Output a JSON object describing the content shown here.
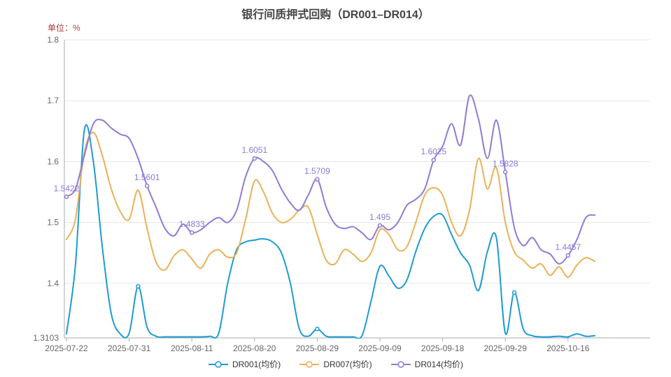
{
  "chart_data": {
    "type": "line",
    "title": "银行间质押式回购（DR001–DR014）",
    "unit_label": "单位：%",
    "ylim": [
      1.3103,
      1.8
    ],
    "y_tick_labels": [
      "1.3103",
      "1.4",
      "1.5",
      "1.6",
      "1.7",
      "1.8"
    ],
    "x_tick_indices": [
      0,
      7,
      14,
      21,
      28,
      35,
      42,
      49,
      56
    ],
    "x_tick_labels": [
      "2025-07-22",
      "2025-07-31",
      "2025-08-11",
      "2025-08-20",
      "2025-08-29",
      "2025-09-09",
      "2025-09-18",
      "2025-09-29",
      "2025-10-16"
    ],
    "grid": true,
    "smooth": true,
    "legend_position": "bottom",
    "x": [
      "2025-07-22",
      "2025-07-23",
      "2025-07-24",
      "2025-07-25",
      "2025-07-28",
      "2025-07-29",
      "2025-07-30",
      "2025-07-31",
      "2025-08-01",
      "2025-08-04",
      "2025-08-05",
      "2025-08-06",
      "2025-08-07",
      "2025-08-08",
      "2025-08-11",
      "2025-08-12",
      "2025-08-13",
      "2025-08-14",
      "2025-08-15",
      "2025-08-18",
      "2025-08-19",
      "2025-08-20",
      "2025-08-21",
      "2025-08-22",
      "2025-08-25",
      "2025-08-26",
      "2025-08-27",
      "2025-08-28",
      "2025-08-29",
      "2025-09-01",
      "2025-09-02",
      "2025-09-03",
      "2025-09-04",
      "2025-09-05",
      "2025-09-08",
      "2025-09-09",
      "2025-09-10",
      "2025-09-11",
      "2025-09-12",
      "2025-09-15",
      "2025-09-16",
      "2025-09-17",
      "2025-09-18",
      "2025-09-19",
      "2025-09-22",
      "2025-09-23",
      "2025-09-24",
      "2025-09-25",
      "2025-09-26",
      "2025-09-29",
      "2025-09-30",
      "2025-10-09",
      "2025-10-10",
      "2025-10-13",
      "2025-10-14",
      "2025-10-15",
      "2025-10-16",
      "2025-10-17",
      "2025-10-20",
      "2025-10-21"
    ],
    "series": [
      {
        "key": "dr001",
        "name": "DR001(均价)",
        "color": "#1d9bd4",
        "marker_indices": [
          8,
          28,
          50
        ],
        "values": [
          1.317,
          1.43,
          1.652,
          1.6,
          1.46,
          1.35,
          1.317,
          1.318,
          1.395,
          1.328,
          1.313,
          1.312,
          1.312,
          1.312,
          1.312,
          1.312,
          1.313,
          1.318,
          1.4,
          1.455,
          1.468,
          1.471,
          1.473,
          1.468,
          1.45,
          1.4,
          1.325,
          1.313,
          1.325,
          1.313,
          1.312,
          1.312,
          1.312,
          1.314,
          1.37,
          1.428,
          1.412,
          1.392,
          1.405,
          1.452,
          1.49,
          1.51,
          1.512,
          1.48,
          1.45,
          1.43,
          1.388,
          1.452,
          1.475,
          1.318,
          1.385,
          1.325,
          1.314,
          1.312,
          1.312,
          1.313,
          1.312,
          1.317,
          1.313,
          1.314
        ]
      },
      {
        "key": "dr007",
        "name": "DR007(均价)",
        "color": "#e9b258",
        "marker_indices": [],
        "values": [
          1.472,
          1.505,
          1.615,
          1.648,
          1.61,
          1.555,
          1.518,
          1.505,
          1.553,
          1.49,
          1.435,
          1.422,
          1.445,
          1.455,
          1.44,
          1.425,
          1.448,
          1.455,
          1.443,
          1.45,
          1.505,
          1.568,
          1.55,
          1.515,
          1.5,
          1.505,
          1.52,
          1.525,
          1.48,
          1.438,
          1.432,
          1.455,
          1.448,
          1.436,
          1.45,
          1.488,
          1.48,
          1.455,
          1.46,
          1.5,
          1.545,
          1.557,
          1.545,
          1.5,
          1.478,
          1.52,
          1.605,
          1.555,
          1.59,
          1.5,
          1.452,
          1.438,
          1.425,
          1.432,
          1.413,
          1.427,
          1.41,
          1.43,
          1.442,
          1.436
        ]
      },
      {
        "key": "dr014",
        "name": "DR014(均价)",
        "color": "#907bd6",
        "marker_indices": [
          0,
          9,
          14,
          21,
          28,
          35,
          41,
          49,
          56
        ],
        "values": [
          1.5422,
          1.555,
          1.61,
          1.662,
          1.668,
          1.655,
          1.645,
          1.638,
          1.605,
          1.5601,
          1.525,
          1.49,
          1.478,
          1.497,
          1.4833,
          1.488,
          1.5,
          1.508,
          1.5,
          1.52,
          1.575,
          1.6051,
          1.6,
          1.585,
          1.555,
          1.532,
          1.52,
          1.545,
          1.5709,
          1.525,
          1.497,
          1.49,
          1.493,
          1.483,
          1.472,
          1.495,
          1.488,
          1.5,
          1.528,
          1.538,
          1.555,
          1.6025,
          1.625,
          1.662,
          1.627,
          1.708,
          1.67,
          1.605,
          1.668,
          1.5828,
          1.492,
          1.462,
          1.475,
          1.455,
          1.448,
          1.432,
          1.4457,
          1.472,
          1.508,
          1.512
        ]
      }
    ],
    "annotations": [
      {
        "series_key": "dr014",
        "index": 0,
        "text": "1.5422"
      },
      {
        "series_key": "dr014",
        "index": 9,
        "text": "1.5601"
      },
      {
        "series_key": "dr014",
        "index": 14,
        "text": "1.4833"
      },
      {
        "series_key": "dr014",
        "index": 21,
        "text": "1.6051"
      },
      {
        "series_key": "dr014",
        "index": 28,
        "text": "1.5709"
      },
      {
        "series_key": "dr014",
        "index": 35,
        "text": "1.495"
      },
      {
        "series_key": "dr014",
        "index": 41,
        "text": "1.6025"
      },
      {
        "series_key": "dr014",
        "index": 49,
        "text": "1.5828"
      },
      {
        "series_key": "dr014",
        "index": 56,
        "text": "1.4457"
      }
    ],
    "colors": {
      "grid": "#e6e6e6",
      "axis": "#a8abb2",
      "tick_text": "#666666",
      "annotation": "#8b79d9",
      "title": "#454545",
      "unit": "#b23b3b",
      "background": "#ffffff"
    }
  }
}
